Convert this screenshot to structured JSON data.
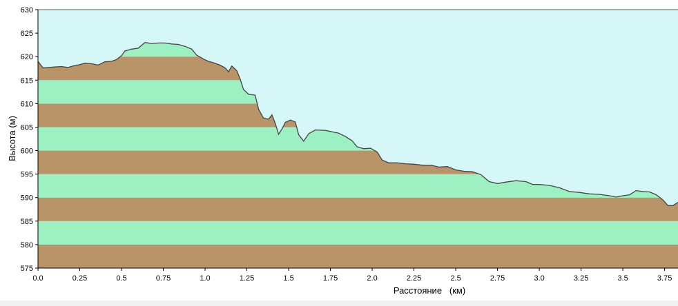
{
  "colors": {
    "sky": "#d6f7f7",
    "band_green": "#9cf0c1",
    "band_brown": "#b89468",
    "profile_line": "#444444",
    "axis": "#000000"
  },
  "chart_data": {
    "type": "area",
    "title": "",
    "xlabel": "Расстояние   (км)",
    "ylabel": "Высота (м)",
    "xlim": [
      0,
      3.83
    ],
    "ylim": [
      575,
      630
    ],
    "x_ticks": [
      0.0,
      0.25,
      0.5,
      0.75,
      1.0,
      1.25,
      1.5,
      1.75,
      2.0,
      2.25,
      2.5,
      2.75,
      3.0,
      3.25,
      3.5,
      3.75
    ],
    "x_tick_labels": [
      "0.0",
      "0.25",
      "0.5",
      "0.75",
      "1.0",
      "1.25",
      "1.5",
      "1.75",
      "2.0",
      "2.25",
      "2.5",
      "2.75",
      "3.0",
      "3.25",
      "3.5",
      "3.75"
    ],
    "y_ticks": [
      575,
      580,
      585,
      590,
      595,
      600,
      605,
      610,
      615,
      620,
      625,
      630
    ],
    "y_tick_labels": [
      "575",
      "580",
      "585",
      "590",
      "595",
      "600",
      "605",
      "610",
      "615",
      "620",
      "625",
      "630"
    ],
    "grid": false,
    "background_bands": {
      "step": 5,
      "start": 575,
      "pattern": [
        "brown",
        "green"
      ]
    },
    "series": [
      {
        "points": [
          [
            0.0,
            619.0
          ],
          [
            0.03,
            617.6
          ],
          [
            0.06,
            617.7
          ],
          [
            0.1,
            617.8
          ],
          [
            0.14,
            617.9
          ],
          [
            0.18,
            617.7
          ],
          [
            0.21,
            618.0
          ],
          [
            0.25,
            618.3
          ],
          [
            0.28,
            618.6
          ],
          [
            0.32,
            618.5
          ],
          [
            0.36,
            618.2
          ],
          [
            0.4,
            618.9
          ],
          [
            0.44,
            619.0
          ],
          [
            0.47,
            619.4
          ],
          [
            0.5,
            620.2
          ],
          [
            0.52,
            621.2
          ],
          [
            0.56,
            621.6
          ],
          [
            0.6,
            621.8
          ],
          [
            0.64,
            623.0
          ],
          [
            0.68,
            622.8
          ],
          [
            0.72,
            622.9
          ],
          [
            0.76,
            622.9
          ],
          [
            0.8,
            622.7
          ],
          [
            0.84,
            622.6
          ],
          [
            0.88,
            622.2
          ],
          [
            0.92,
            621.6
          ],
          [
            0.95,
            620.3
          ],
          [
            0.99,
            619.5
          ],
          [
            1.02,
            619.0
          ],
          [
            1.05,
            618.7
          ],
          [
            1.09,
            618.2
          ],
          [
            1.12,
            617.6
          ],
          [
            1.14,
            616.8
          ],
          [
            1.16,
            618.0
          ],
          [
            1.19,
            617.0
          ],
          [
            1.21,
            615.2
          ],
          [
            1.23,
            613.0
          ],
          [
            1.26,
            612.0
          ],
          [
            1.3,
            611.8
          ],
          [
            1.32,
            608.8
          ],
          [
            1.35,
            606.9
          ],
          [
            1.38,
            606.7
          ],
          [
            1.4,
            607.6
          ],
          [
            1.42,
            605.8
          ],
          [
            1.44,
            603.5
          ],
          [
            1.46,
            604.6
          ],
          [
            1.48,
            606.0
          ],
          [
            1.51,
            606.5
          ],
          [
            1.54,
            606.1
          ],
          [
            1.56,
            603.4
          ],
          [
            1.59,
            602.0
          ],
          [
            1.62,
            603.6
          ],
          [
            1.66,
            604.4
          ],
          [
            1.72,
            604.3
          ],
          [
            1.76,
            604.0
          ],
          [
            1.8,
            603.7
          ],
          [
            1.84,
            603.0
          ],
          [
            1.88,
            602.1
          ],
          [
            1.91,
            600.8
          ],
          [
            1.95,
            600.4
          ],
          [
            1.99,
            600.5
          ],
          [
            2.03,
            599.7
          ],
          [
            2.06,
            598.0
          ],
          [
            2.1,
            597.4
          ],
          [
            2.15,
            597.4
          ],
          [
            2.2,
            597.2
          ],
          [
            2.25,
            597.1
          ],
          [
            2.3,
            596.9
          ],
          [
            2.35,
            596.9
          ],
          [
            2.4,
            596.5
          ],
          [
            2.45,
            596.6
          ],
          [
            2.5,
            595.9
          ],
          [
            2.55,
            595.6
          ],
          [
            2.6,
            595.5
          ],
          [
            2.65,
            594.9
          ],
          [
            2.7,
            593.4
          ],
          [
            2.75,
            593.0
          ],
          [
            2.8,
            593.3
          ],
          [
            2.86,
            593.6
          ],
          [
            2.92,
            593.4
          ],
          [
            2.96,
            592.8
          ],
          [
            3.0,
            592.8
          ],
          [
            3.06,
            592.6
          ],
          [
            3.12,
            592.1
          ],
          [
            3.18,
            591.3
          ],
          [
            3.24,
            591.1
          ],
          [
            3.3,
            590.8
          ],
          [
            3.36,
            590.7
          ],
          [
            3.42,
            590.4
          ],
          [
            3.46,
            590.1
          ],
          [
            3.5,
            590.4
          ],
          [
            3.54,
            590.6
          ],
          [
            3.58,
            591.5
          ],
          [
            3.62,
            591.3
          ],
          [
            3.66,
            591.2
          ],
          [
            3.7,
            590.6
          ],
          [
            3.74,
            589.5
          ],
          [
            3.77,
            588.3
          ],
          [
            3.8,
            588.3
          ],
          [
            3.83,
            589.0
          ]
        ]
      }
    ]
  }
}
